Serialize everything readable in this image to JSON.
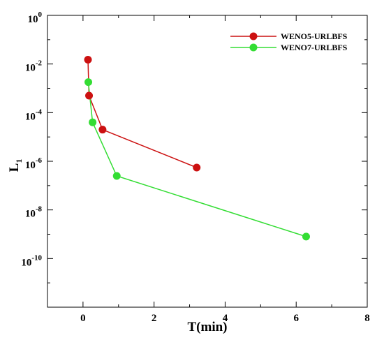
{
  "chart_data": {
    "type": "line",
    "title": "",
    "xlabel": "T(min)",
    "ylabel_main": "L",
    "ylabel_sub": "1",
    "xlim": [
      -1,
      8
    ],
    "ylim_log10": [
      -12,
      0
    ],
    "yscale": "log",
    "grid": false,
    "legend_position": "top-right",
    "x_ticks": [
      0,
      2,
      4,
      6,
      8
    ],
    "x_tick_labels": [
      "0",
      "2",
      "4",
      "6",
      "8"
    ],
    "y_ticks_exp": [
      0,
      -2,
      -4,
      -6,
      -8,
      -10
    ],
    "y_tick_base": "10",
    "y_tick_exponents": [
      "0",
      "-2",
      "-4",
      "-6",
      "-8",
      "-10"
    ],
    "series": [
      {
        "name": "WENO5-URLBFS",
        "color": "#cc1111",
        "points": [
          {
            "x": 0.14,
            "y": 0.015
          },
          {
            "x": 0.17,
            "y": 0.0005
          },
          {
            "x": 0.55,
            "y": 2e-05
          },
          {
            "x": 3.2,
            "y": 5.5e-07
          }
        ]
      },
      {
        "name": "WENO7-URLBFS",
        "color": "#33dd33",
        "points": [
          {
            "x": 0.15,
            "y": 0.0018
          },
          {
            "x": 0.27,
            "y": 4e-05
          },
          {
            "x": 0.95,
            "y": 2.5e-07
          },
          {
            "x": 6.28,
            "y": 8e-10
          }
        ]
      }
    ]
  }
}
